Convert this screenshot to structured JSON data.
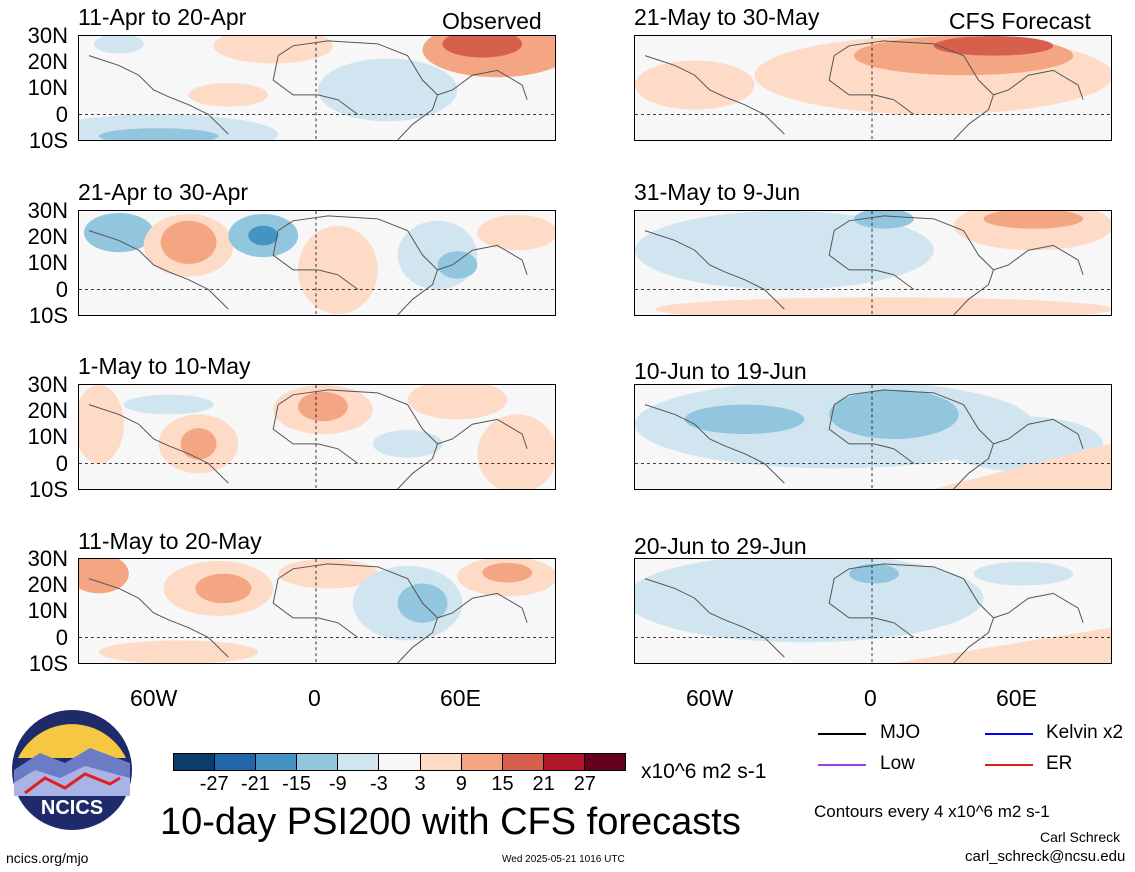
{
  "panels": [
    {
      "title": "11-Apr to 20-Apr",
      "corner": "Observed",
      "col": 0,
      "row": 0
    },
    {
      "title": "21-Apr to 30-Apr",
      "corner": "",
      "col": 0,
      "row": 1
    },
    {
      "title": "1-May to 10-May",
      "corner": "",
      "col": 0,
      "row": 2
    },
    {
      "title": "11-May to 20-May",
      "corner": "",
      "col": 0,
      "row": 3
    },
    {
      "title": "21-May to 30-May",
      "corner": "CFS Forecast",
      "col": 1,
      "row": 0
    },
    {
      "title": "31-May to 9-Jun",
      "corner": "",
      "col": 1,
      "row": 1
    },
    {
      "title": "10-Jun to 19-Jun",
      "corner": "",
      "col": 1,
      "row": 2
    },
    {
      "title": "20-Jun to 29-Jun",
      "corner": "",
      "col": 1,
      "row": 3
    }
  ],
  "lat_labels": [
    "30N",
    "20N",
    "10N",
    "0",
    "10S"
  ],
  "lon_labels": [
    "60W",
    "0",
    "60E"
  ],
  "colorbar": {
    "ticks": [
      "-27",
      "-21",
      "-15",
      "-9",
      "-3",
      "3",
      "9",
      "15",
      "21",
      "27"
    ],
    "colors": [
      "#0a3d6b",
      "#2166ac",
      "#4393c3",
      "#92c5de",
      "#d1e5f0",
      "#f7f7f7",
      "#fddbc7",
      "#f4a582",
      "#d6604d",
      "#b2182b",
      "#67001f"
    ],
    "units": "x10^6 m2 s-1"
  },
  "main_title": "10-day PSI200 with CFS forecasts",
  "legend": [
    {
      "label": "MJO",
      "color": "#000000"
    },
    {
      "label": "Kelvin x2",
      "color": "#0000ff"
    },
    {
      "label": "Low",
      "color": "#a040e0"
    },
    {
      "label": "ER",
      "color": "#e02020"
    }
  ],
  "contour_note": "Contours every 4 x10^6 m2 s-1",
  "author": "Carl Schreck",
  "email": "carl_schreck@ncsu.edu",
  "site": "ncics.org/mjo",
  "timestamp": "Wed 2025-05-21 1016 UTC",
  "logo_text": "NCICS"
}
